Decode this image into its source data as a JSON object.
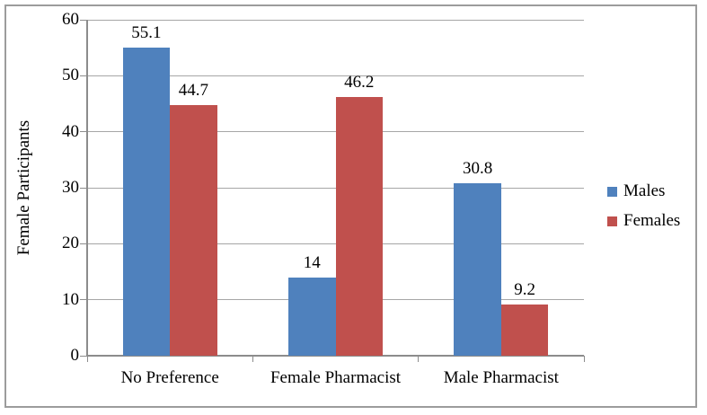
{
  "chart_data": {
    "type": "bar",
    "title": "",
    "categories": [
      "No Preference",
      "Female Pharmacist",
      "Male Pharmacist"
    ],
    "series": [
      {
        "name": "Males",
        "color": "#4f81bd",
        "values": [
          55.1,
          14,
          30.8
        ]
      },
      {
        "name": "Females",
        "color": "#c0504d",
        "values": [
          44.7,
          46.2,
          9.2
        ]
      }
    ],
    "xlabel": "",
    "ylabel": "Female Participants",
    "ylim": [
      0,
      60
    ],
    "ytick_step": 10,
    "ytick_labels": [
      "0",
      "10",
      "20",
      "30",
      "40",
      "50",
      "60"
    ],
    "grid": true,
    "data_labels_shown": true,
    "legend_position": "right"
  },
  "colors": {
    "males": "#4f81bd",
    "females": "#c0504d",
    "gridline": "#a6a6a6",
    "axis": "#8c8c8c",
    "frame_border": "#9c9c9c",
    "background": "#ffffff",
    "text": "#000000"
  }
}
